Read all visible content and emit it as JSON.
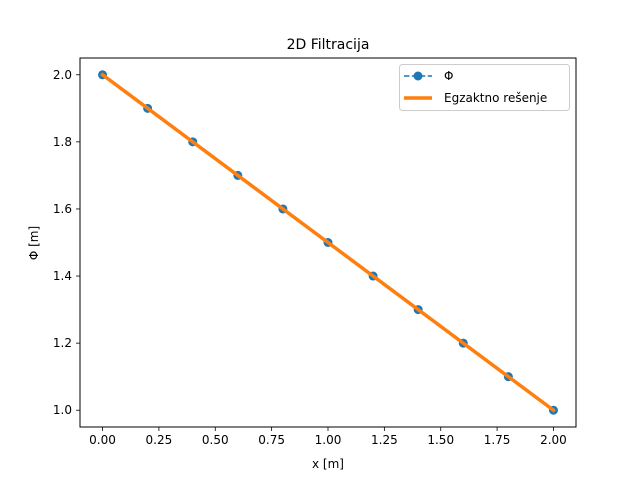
{
  "chart_data": {
    "type": "line",
    "title": "2D Filtracija",
    "xlabel": "x [m]",
    "ylabel": "Φ [m]",
    "xlim": [
      -0.1,
      2.1
    ],
    "ylim": [
      0.95,
      2.05
    ],
    "xticks": [
      0.0,
      0.25,
      0.5,
      0.75,
      1.0,
      1.25,
      1.5,
      1.75,
      2.0
    ],
    "xtick_labels": [
      "0.00",
      "0.25",
      "0.50",
      "0.75",
      "1.00",
      "1.25",
      "1.50",
      "1.75",
      "2.00"
    ],
    "yticks": [
      1.0,
      1.2,
      1.4,
      1.6,
      1.8,
      2.0
    ],
    "ytick_labels": [
      "1.0",
      "1.2",
      "1.4",
      "1.6",
      "1.8",
      "2.0"
    ],
    "grid": false,
    "legend_position": "top-right",
    "series": [
      {
        "name": "Φ",
        "style": "dashed-line-with-circle-markers",
        "color": "#1f77b4",
        "x": [
          0.0,
          0.2,
          0.4,
          0.6,
          0.8,
          1.0,
          1.2,
          1.4,
          1.6,
          1.8,
          2.0
        ],
        "y": [
          2.0,
          1.9,
          1.8,
          1.7,
          1.6,
          1.5,
          1.4,
          1.3,
          1.2,
          1.1,
          1.0
        ]
      },
      {
        "name": "Egzaktno rešenje",
        "style": "solid-thick-line",
        "color": "#ff7f0e",
        "x": [
          0.0,
          2.0
        ],
        "y": [
          2.0,
          1.0
        ]
      }
    ]
  }
}
